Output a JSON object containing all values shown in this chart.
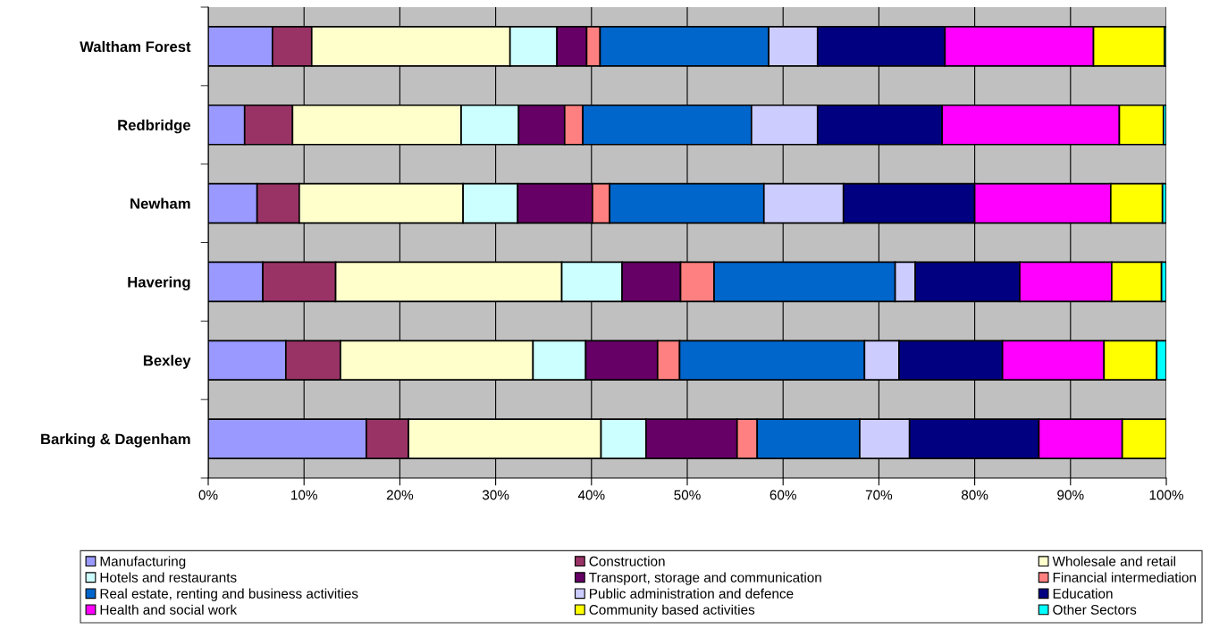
{
  "chart_data": {
    "type": "bar",
    "orientation": "horizontal",
    "stacked": true,
    "categories": [
      "Waltham Forest",
      "Redbridge",
      "Newham",
      "Havering",
      "Bexley",
      "Barking & Dagenham"
    ],
    "xlim": [
      0,
      100
    ],
    "xticks": [
      {
        "value": 0,
        "label": "0%"
      },
      {
        "value": 10,
        "label": "10%"
      },
      {
        "value": 20,
        "label": "20%"
      },
      {
        "value": 30,
        "label": "30%"
      },
      {
        "value": 40,
        "label": "40%"
      },
      {
        "value": 50,
        "label": "50%"
      },
      {
        "value": 60,
        "label": "60%"
      },
      {
        "value": 70,
        "label": "70%"
      },
      {
        "value": 80,
        "label": "80%"
      },
      {
        "value": 90,
        "label": "90%"
      },
      {
        "value": 100,
        "label": "100%"
      }
    ],
    "grid": "x",
    "legend": "bottom",
    "series": [
      {
        "name": "Manufacturing",
        "color": "#9999ff",
        "values": [
          6.7,
          3.8,
          5.1,
          5.7,
          8.1,
          16.5
        ]
      },
      {
        "name": "Construction",
        "color": "#993366",
        "values": [
          4.1,
          5.0,
          4.4,
          7.6,
          5.7,
          4.4
        ]
      },
      {
        "name": "Wholesale and retail",
        "color": "#ffffcc",
        "values": [
          20.7,
          17.6,
          17.1,
          23.6,
          20.1,
          20.1
        ]
      },
      {
        "name": "Hotels and restaurants",
        "color": "#ccffff",
        "values": [
          4.9,
          6.0,
          5.7,
          6.3,
          5.5,
          4.7
        ]
      },
      {
        "name": "Transport, storage and communication",
        "color": "#660066",
        "values": [
          3.1,
          4.8,
          7.8,
          6.1,
          7.5,
          9.5
        ]
      },
      {
        "name": "Financial intermediation",
        "color": "#ff8080",
        "values": [
          1.4,
          1.9,
          1.8,
          3.5,
          2.3,
          2.1
        ]
      },
      {
        "name": "Real estate, renting and business activities",
        "color": "#0066cc",
        "values": [
          17.6,
          17.6,
          16.1,
          18.9,
          19.3,
          10.7
        ]
      },
      {
        "name": "Public administration and defence",
        "color": "#ccccff",
        "values": [
          5.1,
          6.9,
          8.3,
          2.1,
          3.6,
          5.2
        ]
      },
      {
        "name": "Education",
        "color": "#000080",
        "values": [
          13.3,
          13.0,
          13.7,
          10.9,
          10.8,
          13.5
        ]
      },
      {
        "name": "Health and social work",
        "color": "#ff00ff",
        "values": [
          15.5,
          18.5,
          14.2,
          9.6,
          10.6,
          8.7
        ]
      },
      {
        "name": "Community based activities",
        "color": "#ffff00",
        "values": [
          7.4,
          4.6,
          5.4,
          5.2,
          5.5,
          4.6
        ]
      },
      {
        "name": "Other Sectors",
        "color": "#00ffff",
        "values": [
          0.2,
          0.3,
          0.4,
          0.5,
          1.0,
          null
        ]
      }
    ]
  }
}
